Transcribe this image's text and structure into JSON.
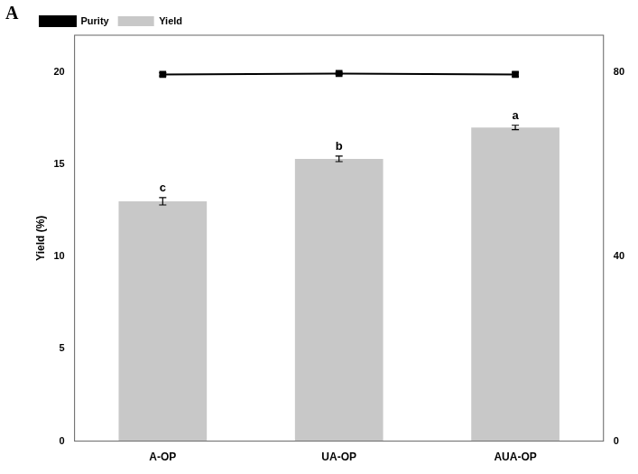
{
  "chart_data": {
    "type": "bar",
    "categories": [
      "A-OP",
      "UA-OP",
      "AUA-OP"
    ],
    "ylabel": "Yield (%)",
    "ylim": [
      0,
      22
    ],
    "yticks": [
      0,
      5,
      10,
      15,
      20
    ],
    "y2lim": [
      0,
      88
    ],
    "y2ticks": [
      0,
      40,
      80
    ],
    "series": [
      {
        "name": "Yield",
        "type": "bar",
        "color": "#c8c8c8",
        "values": [
          13.0,
          15.3,
          17.0
        ],
        "errors": [
          0.2,
          0.15,
          0.12
        ]
      },
      {
        "name": "Purity",
        "type": "line",
        "axis": "y2",
        "color": "#000000",
        "marker": "square",
        "values": [
          79.5,
          79.7,
          79.5
        ],
        "errors": [
          0.35,
          0.25,
          0.45
        ]
      }
    ],
    "annotations": [
      "c",
      "b",
      "a"
    ],
    "panel_label": "A",
    "legend": "upper left",
    "grid": false
  }
}
